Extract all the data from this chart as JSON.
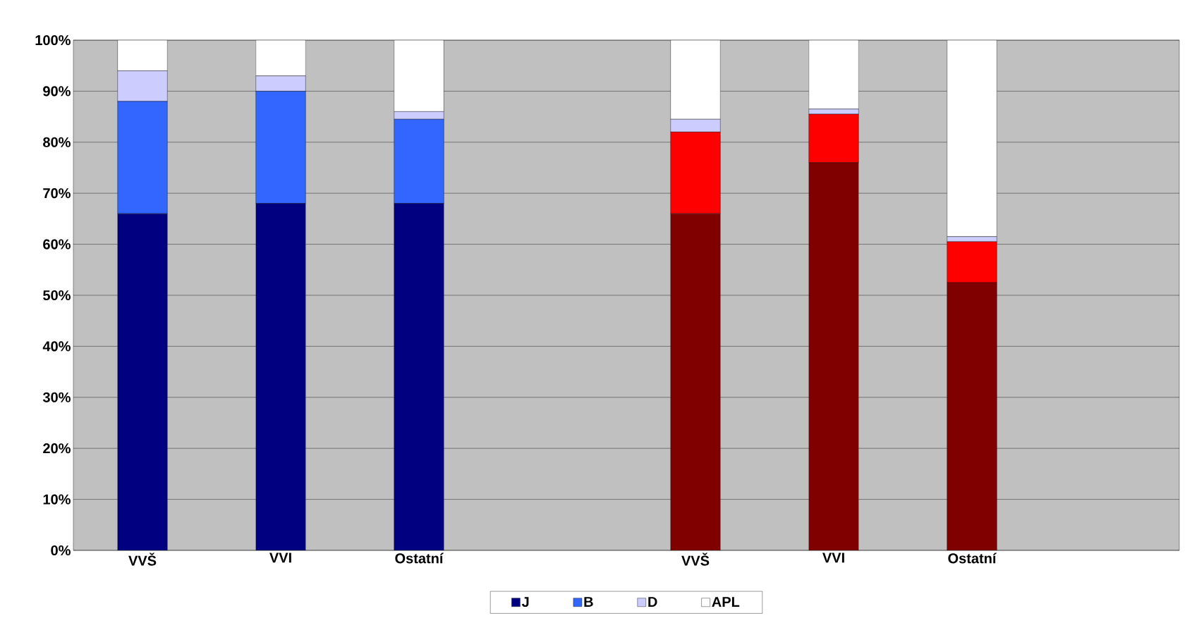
{
  "chart_data": {
    "type": "bar",
    "stacked": true,
    "categories": [
      "VVŠ",
      "VVI",
      "Ostatní",
      null,
      "VVŠ",
      "VVI",
      "Ostatní",
      null
    ],
    "series": [
      {
        "name": "J",
        "color": "#000080",
        "colors": [
          "#000080",
          "#000080",
          "#000080",
          null,
          "#800000",
          "#800000",
          "#800000",
          null
        ],
        "values": [
          66,
          68,
          68,
          null,
          66,
          76,
          52.5,
          null
        ]
      },
      {
        "name": "B",
        "color": "#3366ff",
        "colors": [
          "#3366ff",
          "#3366ff",
          "#3366ff",
          null,
          "#ff0000",
          "#ff0000",
          "#ff0000",
          null
        ],
        "values": [
          22,
          22,
          16.5,
          null,
          16,
          9.5,
          8,
          null
        ]
      },
      {
        "name": "D",
        "color": "#ccccff",
        "colors": [
          "#ccccff",
          "#ccccff",
          "#ccccff",
          null,
          "#ccccff",
          "#ccccff",
          "#ccccff",
          null
        ],
        "values": [
          6,
          3,
          1.5,
          null,
          2.5,
          1,
          1,
          null
        ]
      },
      {
        "name": "APL",
        "color": "#ffffff",
        "colors": [
          "#ffffff",
          "#ffffff",
          "#ffffff",
          null,
          "#ffffff",
          "#ffffff",
          "#ffffff",
          null
        ],
        "values": [
          6,
          7,
          14,
          null,
          15.5,
          13.5,
          38.5,
          null
        ]
      }
    ],
    "ylim": [
      0,
      100
    ],
    "yticks": [
      {
        "value": 0,
        "label": "0%"
      },
      {
        "value": 10,
        "label": "10%"
      },
      {
        "value": 20,
        "label": "20%"
      },
      {
        "value": 30,
        "label": "30%"
      },
      {
        "value": 40,
        "label": "40%"
      },
      {
        "value": 50,
        "label": "50%"
      },
      {
        "value": 60,
        "label": "60%"
      },
      {
        "value": 70,
        "label": "70%"
      },
      {
        "value": 80,
        "label": "80%"
      },
      {
        "value": 90,
        "label": "90%"
      },
      {
        "value": 100,
        "label": "100%"
      }
    ],
    "grid": "y",
    "legend": "bottom"
  }
}
